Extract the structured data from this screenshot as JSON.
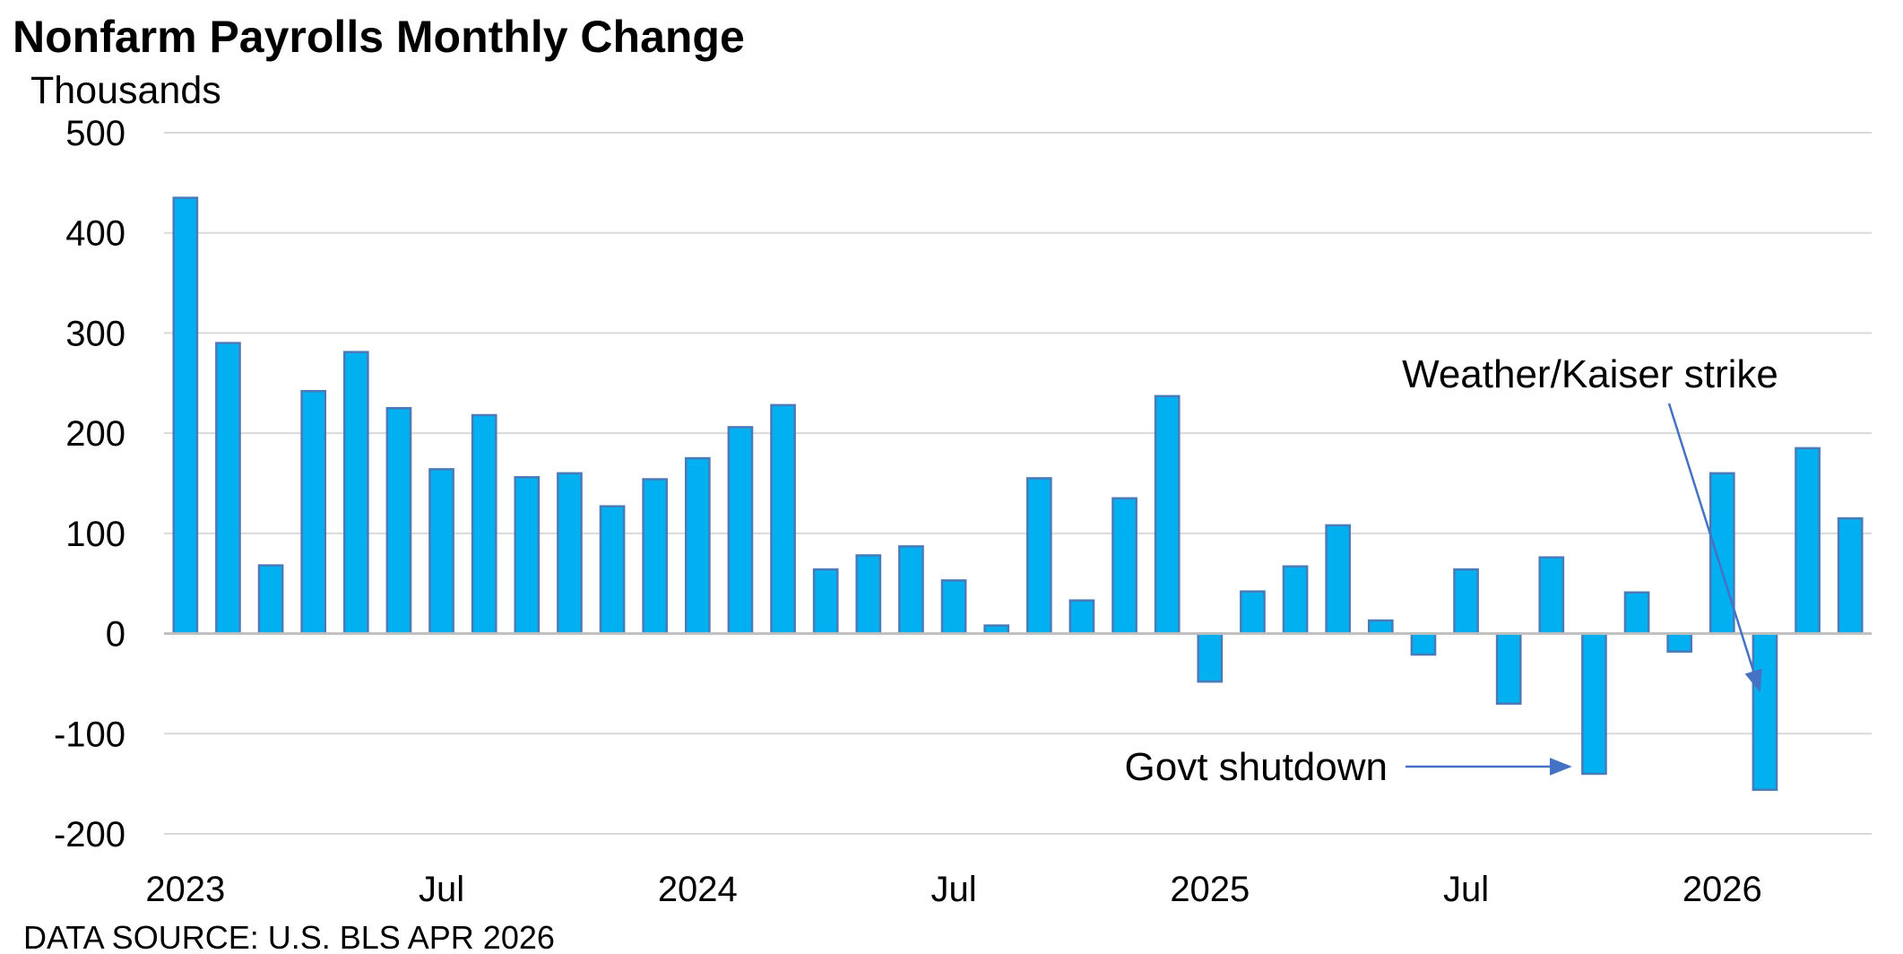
{
  "chart_data": {
    "type": "bar",
    "title": "Nonfarm Payrolls Monthly Change",
    "ylabel": "Thousands",
    "ylim": [
      -200,
      500
    ],
    "yticks": [
      500,
      400,
      300,
      200,
      100,
      0,
      -100,
      -200
    ],
    "source": "DATA SOURCE: U.S. BLS APR 2026",
    "grid": true,
    "categories": [
      "2023-01",
      "2023-02",
      "2023-03",
      "2023-04",
      "2023-05",
      "2023-06",
      "2023-07",
      "2023-08",
      "2023-09",
      "2023-10",
      "2023-11",
      "2023-12",
      "2024-01",
      "2024-02",
      "2024-03",
      "2024-04",
      "2024-05",
      "2024-06",
      "2024-07",
      "2024-08",
      "2024-09",
      "2024-10",
      "2024-11",
      "2024-12",
      "2025-01",
      "2025-02",
      "2025-03",
      "2025-04",
      "2025-05",
      "2025-06",
      "2025-07",
      "2025-08",
      "2025-09",
      "2025-10",
      "2025-11",
      "2025-12",
      "2026-01",
      "2026-02",
      "2026-03",
      "2026-04"
    ],
    "values": [
      435,
      290,
      68,
      242,
      281,
      225,
      164,
      218,
      156,
      160,
      127,
      154,
      175,
      206,
      228,
      64,
      78,
      87,
      53,
      8,
      155,
      33,
      135,
      237,
      -48,
      42,
      67,
      108,
      13,
      -21,
      64,
      -70,
      76,
      -140,
      41,
      -18,
      160,
      -156,
      185,
      115
    ],
    "xtick_labels": [
      {
        "index": 0,
        "label": "2023"
      },
      {
        "index": 6,
        "label": "Jul"
      },
      {
        "index": 12,
        "label": "2024"
      },
      {
        "index": 18,
        "label": "Jul"
      },
      {
        "index": 24,
        "label": "2025"
      },
      {
        "index": 30,
        "label": "Jul"
      },
      {
        "index": 36,
        "label": "2026"
      }
    ],
    "annotations": [
      {
        "text": "Govt shutdown",
        "target_index": 33
      },
      {
        "text": "Weather/Kaiser strike",
        "target_index": 37
      }
    ]
  }
}
